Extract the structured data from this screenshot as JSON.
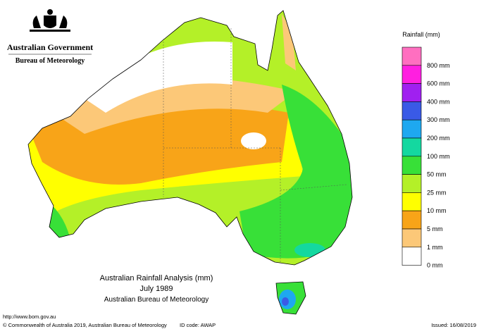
{
  "header": {
    "government": "Australian Government",
    "bureau": "Bureau of Meteorology"
  },
  "legend": {
    "title": "Rainfall (mm)",
    "items": [
      {
        "label": "800 mm",
        "color": "#ff6fc0"
      },
      {
        "label": "600 mm",
        "color": "#ff1fe0"
      },
      {
        "label": "400 mm",
        "color": "#a020f0"
      },
      {
        "label": "300 mm",
        "color": "#3a5ae6"
      },
      {
        "label": "200 mm",
        "color": "#1ea8f0"
      },
      {
        "label": "100 mm",
        "color": "#14d8a0"
      },
      {
        "label": "50 mm",
        "color": "#38e038"
      },
      {
        "label": "25 mm",
        "color": "#b4f028"
      },
      {
        "label": "10 mm",
        "color": "#ffff00"
      },
      {
        "label": "5 mm",
        "color": "#f8a418"
      },
      {
        "label": "1 mm",
        "color": "#fcc878"
      },
      {
        "label": "0 mm",
        "color": "#ffffff"
      }
    ]
  },
  "title": {
    "line1": "Australian Rainfall Analysis (mm)",
    "line2": "July 1989",
    "line3": "Australian Bureau of Meteorology"
  },
  "footer": {
    "url": "http://www.bom.gov.au",
    "copyright": "© Commonwealth of Australia 2019, Australian Bureau of Meteorology",
    "id": "ID code: AWAP",
    "issued": "Issued: 16/08/2019"
  }
}
